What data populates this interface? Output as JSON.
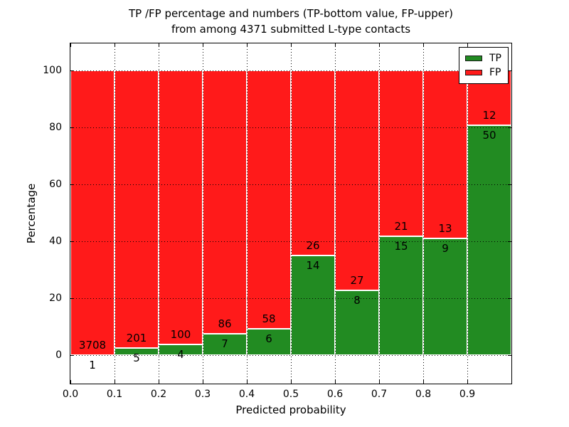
{
  "figure": {
    "title_line1": "TP /FP percentage and numbers (TP-bottom value, FP-upper)",
    "title_line2": "from among 4371 submitted L-type contacts"
  },
  "chart_data": {
    "type": "bar",
    "stacked": true,
    "title": "TP /FP percentage and numbers (TP-bottom value, FP-upper) from among 4371 submitted L-type contacts",
    "xlabel": "Predicted probability",
    "ylabel": "Percentage",
    "total_contacts": 4371,
    "categories": [
      "0.0-0.1",
      "0.1-0.2",
      "0.2-0.3",
      "0.3-0.4",
      "0.4-0.5",
      "0.5-0.6",
      "0.6-0.7",
      "0.7-0.8",
      "0.8-0.9",
      "0.9-1.0"
    ],
    "series": [
      {
        "name": "TP",
        "color": "#228b22",
        "counts": [
          1,
          5,
          4,
          7,
          6,
          14,
          8,
          15,
          9,
          50
        ]
      },
      {
        "name": "FP",
        "color": "#ff1a1a",
        "counts": [
          3708,
          201,
          100,
          86,
          58,
          26,
          27,
          21,
          13,
          12
        ]
      }
    ],
    "tp_percent": [
      0.03,
      2.43,
      3.85,
      7.53,
      9.38,
      35.0,
      22.86,
      41.67,
      40.91,
      80.65
    ],
    "bar_total_percent": 100,
    "xlim": [
      0.0,
      1.0
    ],
    "ylim": [
      -10,
      109.5
    ],
    "xticks": [
      "0.0",
      "0.1",
      "0.2",
      "0.3",
      "0.4",
      "0.5",
      "0.6",
      "0.7",
      "0.8",
      "0.9"
    ],
    "yticks": [
      0,
      20,
      40,
      60,
      80,
      100
    ],
    "grid": "dotted black, drawn over bars",
    "legend": {
      "position": "upper right",
      "entries": [
        {
          "label": "TP",
          "color": "#228b22"
        },
        {
          "label": "FP",
          "color": "#ff1a1a"
        }
      ]
    },
    "colors": {
      "tp": "#228b22",
      "fp": "#ff1a1a",
      "background": "#ffffff",
      "text": "#000000"
    }
  }
}
